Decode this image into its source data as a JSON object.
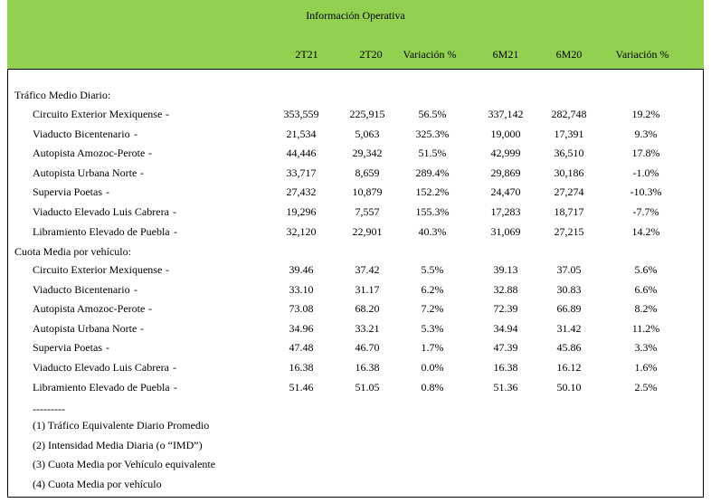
{
  "header": {
    "title": "Información Operativa",
    "columns": [
      "2T21",
      "2T20",
      "Variación %",
      "6M21",
      "6M20",
      "Variación %"
    ]
  },
  "sections": [
    {
      "title": "Tráfico Medio Diario:",
      "rows": [
        {
          "label": "Circuito Exterior Mexiquense",
          "suffix": "-",
          "v": [
            "353,559",
            "225,915",
            "56.5%",
            "337,142",
            "282,748",
            "19.2%"
          ]
        },
        {
          "label": "Viaducto Bicentenario",
          "suffix": "-",
          "v": [
            "21,534",
            "5,063",
            "325.3%",
            "19,000",
            "17,391",
            "9.3%"
          ]
        },
        {
          "label": "Autopista Amozoc-Perote",
          "suffix": "-",
          "v": [
            "44,446",
            "29,342",
            "51.5%",
            "42,999",
            "36,510",
            "17.8%"
          ]
        },
        {
          "label": "Autopista Urbana Norte",
          "suffix": "-",
          "v": [
            "33,717",
            "8,659",
            "289.4%",
            "29,869",
            "30,186",
            "-1.0%"
          ]
        },
        {
          "label": "Supervia Poetas",
          "suffix": "-",
          "v": [
            "27,432",
            "10,879",
            "152.2%",
            "24,470",
            "27,274",
            "-10.3%"
          ]
        },
        {
          "label": "Viaducto Elevado Luis Cabrera",
          "suffix": "-",
          "v": [
            "19,296",
            "7,557",
            "155.3%",
            "17,283",
            "18,717",
            "-7.7%"
          ]
        },
        {
          "label": "Libramiento Elevado de Puebla",
          "suffix": "-",
          "v": [
            "32,120",
            "22,901",
            "40.3%",
            "31,069",
            "27,215",
            "14.2%"
          ]
        }
      ]
    },
    {
      "title": "Cuota Media por vehículo:",
      "rows": [
        {
          "label": "Circuito Exterior Mexiquense",
          "suffix": "-",
          "v": [
            "39.46",
            "37.42",
            "5.5%",
            "39.13",
            "37.05",
            "5.6%"
          ]
        },
        {
          "label": "Viaducto Bicentenario",
          "suffix": "-",
          "v": [
            "33.10",
            "31.17",
            "6.2%",
            "32.88",
            "30.83",
            "6.6%"
          ]
        },
        {
          "label": "Autopista Amozoc-Perote",
          "suffix": "-",
          "v": [
            "73.08",
            "68.20",
            "7.2%",
            "72.39",
            "66.89",
            "8.2%"
          ]
        },
        {
          "label": "Autopista Urbana Norte",
          "suffix": "-",
          "v": [
            "34.96",
            "33.21",
            "5.3%",
            "34.94",
            "31.42",
            "11.2%"
          ]
        },
        {
          "label": "Supervia Poetas",
          "suffix": "-",
          "v": [
            "47.48",
            "46.70",
            "1.7%",
            "47.39",
            "45.86",
            "3.3%"
          ]
        },
        {
          "label": "Viaducto Elevado Luis Cabrera",
          "suffix": "-",
          "v": [
            "16.38",
            "16.38",
            "0.0%",
            "16.38",
            "16.12",
            "1.6%"
          ]
        },
        {
          "label": "Libramiento Elevado de Puebla",
          "suffix": "-",
          "v": [
            "51.46",
            "51.05",
            "0.8%",
            "51.36",
            "50.10",
            "2.5%"
          ]
        }
      ]
    }
  ],
  "footnotes": {
    "separator": "---------",
    "items": [
      "(1) Tráfico Equivalente Diario Promedio",
      "(2) Intensidad Media Diaria (o “IMD”)",
      "(3) Cuota Media por Vehículo equivalente",
      "(4) Cuota Media por vehículo"
    ]
  }
}
